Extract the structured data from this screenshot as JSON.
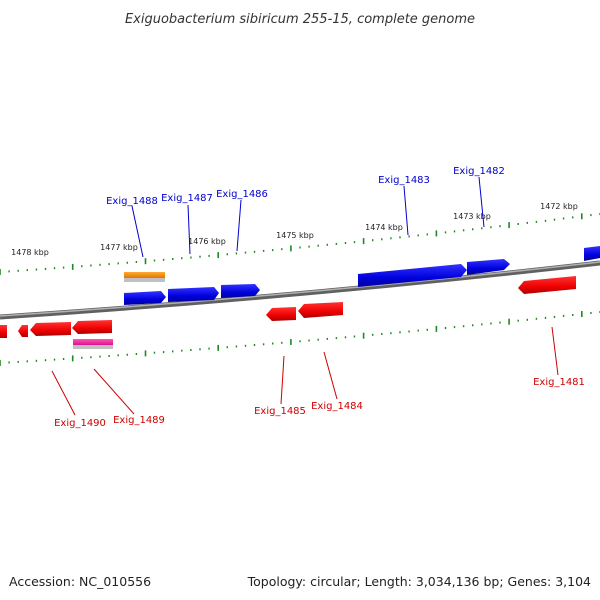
{
  "title": "Exiguobacterium sibiricum 255-15, complete genome",
  "footer": {
    "accession": "Accession: NC_010556",
    "summary": "Topology: circular; Length: 3,034,136 bp; Genes: 3,104"
  },
  "ruler": {
    "labels": [
      "1478 kbp",
      "1477 kbp",
      "1476 kbp",
      "1475 kbp",
      "1474 kbp",
      "1473 kbp",
      "1472 kbp"
    ]
  },
  "colors": {
    "forward_gene": "#0000dd",
    "reverse_gene": "#ee0000",
    "backbone": "#808080",
    "ticks": "#228822",
    "forward_label": "#0000cc",
    "reverse_label": "#cc0000",
    "feature_orange": "#ee8800",
    "feature_pink": "#ee2299"
  },
  "genes": {
    "forward": [
      "Exig_1488",
      "Exig_1487",
      "Exig_1486",
      "Exig_1483",
      "Exig_1482"
    ],
    "reverse": [
      "Exig_1490",
      "Exig_1489",
      "Exig_1485",
      "Exig_1484",
      "Exig_1481"
    ]
  }
}
